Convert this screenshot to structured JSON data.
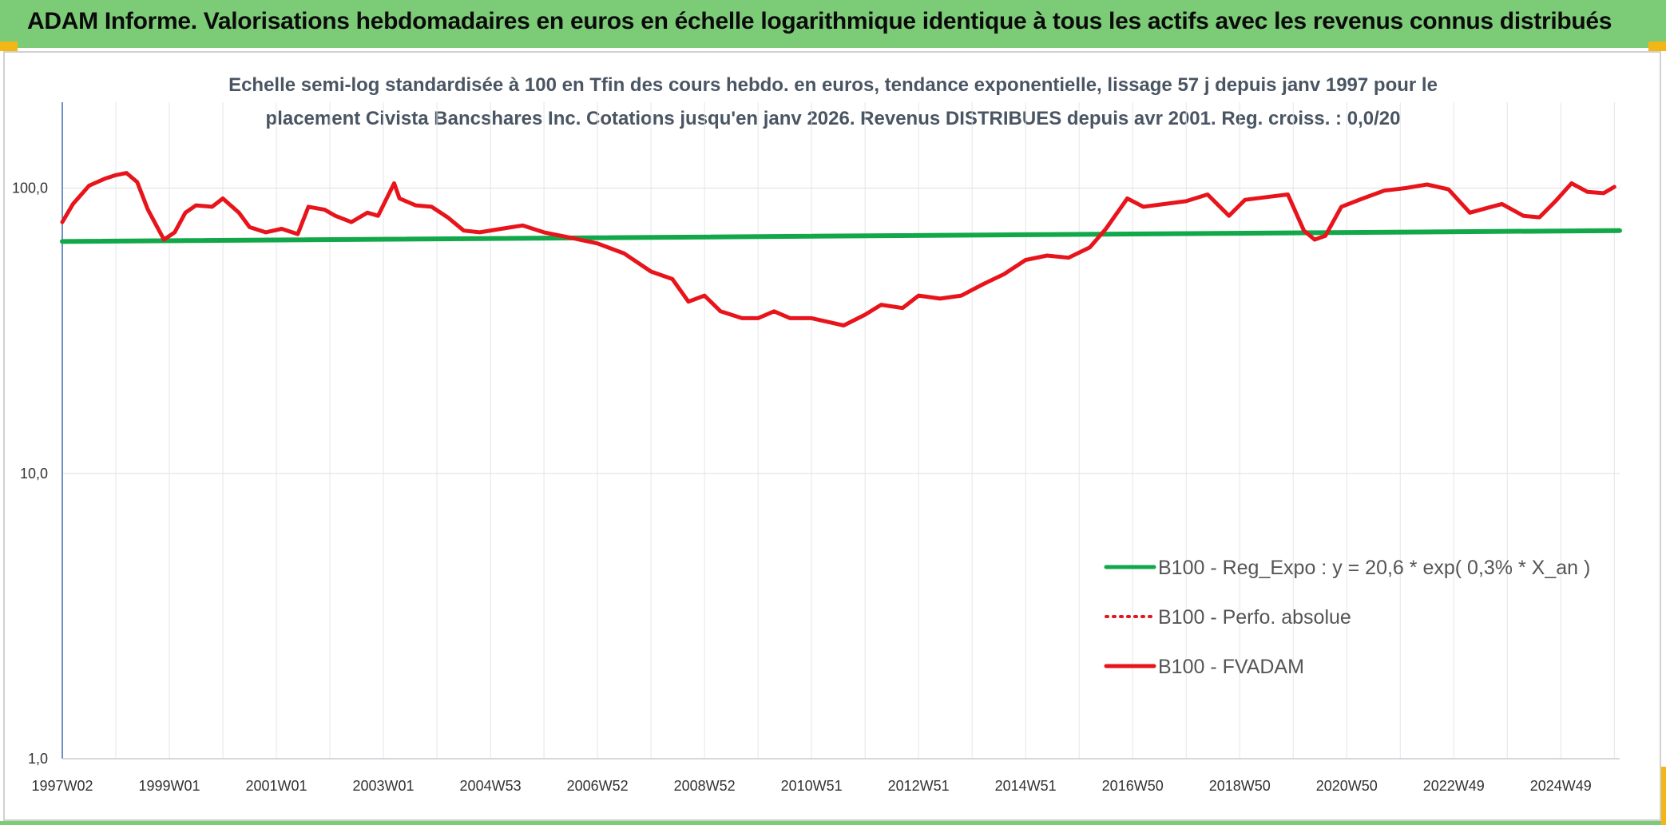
{
  "header": {
    "title": "ADAM Informe. Valorisations hebdomadaires en euros en échelle logarithmique identique à tous les actifs avec les revenus connus distribués"
  },
  "colors": {
    "banner": "#7ccb77",
    "accent": "#f2b617",
    "series_fvadam": "#e8141b",
    "series_reg": "#12a84a"
  },
  "chart_data": {
    "type": "line",
    "subtitle_lines": [
      "Echelle semi-log standardisée à 100 en Tfin des cours hebdo. en euros, tendance exponentielle, lissage 57 j depuis janv 1997 pour le",
      "placement Civista Bancshares Inc. Cotations jusqu'en janv 2026. Revenus DISTRIBUES depuis avr 2001. Reg. croiss. : 0,0/20"
    ],
    "y_scale": "log",
    "ylim": [
      1,
      200
    ],
    "y_ticks": [
      "1,0",
      "10,0",
      "100,0"
    ],
    "y_tick_values": [
      1,
      10,
      100
    ],
    "xlim": [
      1997.0,
      2026.1
    ],
    "x_ticks": [
      "1997W02",
      "1999W01",
      "2001W01",
      "2003W01",
      "2004W53",
      "2006W52",
      "2008W52",
      "2010W51",
      "2012W51",
      "2014W51",
      "2016W50",
      "2018W50",
      "2020W50",
      "2022W49",
      "2024W49"
    ],
    "x_tick_values": [
      1997.0,
      1999.0,
      2001.0,
      2003.0,
      2005.0,
      2007.0,
      2009.0,
      2011.0,
      2013.0,
      2015.0,
      2017.0,
      2019.0,
      2021.0,
      2023.0,
      2025.0
    ],
    "grid": true,
    "legend_position": "bottom-right",
    "legend": [
      {
        "label": "B100 - Reg_Expo : y = 20,6 * exp( 0,3% *  X_an )",
        "style": "solid",
        "color": "#12a84a"
      },
      {
        "label": "B100 - Perfo. absolue",
        "style": "dotted",
        "color": "#e8141b"
      },
      {
        "label": "B100 - FVADAM",
        "style": "solid",
        "color": "#e8141b"
      }
    ],
    "series": [
      {
        "name": "B100 - Reg_Expo",
        "color": "#12a84a",
        "x": [
          1997.0,
          2026.1
        ],
        "y": [
          65,
          71
        ]
      },
      {
        "name": "B100 - FVADAM",
        "color": "#e8141b",
        "x": [
          1997.0,
          1997.2,
          1997.5,
          1997.8,
          1998.0,
          1998.2,
          1998.4,
          1998.6,
          1998.9,
          1999.1,
          1999.3,
          1999.5,
          1999.8,
          2000.0,
          2000.3,
          2000.5,
          2000.8,
          2001.1,
          2001.4,
          2001.6,
          2001.9,
          2002.1,
          2002.4,
          2002.7,
          2002.9,
          2003.2,
          2003.3,
          2003.6,
          2003.9,
          2004.2,
          2004.5,
          2004.8,
          2005.2,
          2005.6,
          2006.0,
          2006.5,
          2007.0,
          2007.5,
          2008.0,
          2008.4,
          2008.7,
          2009.0,
          2009.3,
          2009.7,
          2010.0,
          2010.3,
          2010.6,
          2011.0,
          2011.3,
          2011.6,
          2012.0,
          2012.3,
          2012.7,
          2013.0,
          2013.4,
          2013.8,
          2014.2,
          2014.6,
          2015.0,
          2015.4,
          2015.8,
          2016.2,
          2016.5,
          2016.9,
          2017.2,
          2017.6,
          2018.0,
          2018.4,
          2018.8,
          2019.1,
          2019.5,
          2019.9,
          2020.2,
          2020.4,
          2020.6,
          2020.9,
          2021.3,
          2021.7,
          2022.1,
          2022.5,
          2022.9,
          2023.3,
          2023.6,
          2023.9,
          2024.3,
          2024.6,
          2024.9,
          2025.2,
          2025.5,
          2025.8,
          2026.0
        ],
        "y": [
          76,
          88,
          102,
          108,
          111,
          113,
          105,
          84,
          66,
          70,
          82,
          87,
          86,
          92,
          82,
          73,
          70,
          72,
          69,
          86,
          84,
          80,
          76,
          82,
          80,
          104,
          92,
          87,
          86,
          79,
          71,
          70,
          72,
          74,
          70,
          67,
          64,
          59,
          51,
          48,
          40,
          42,
          37,
          35,
          35,
          37,
          35,
          35,
          34,
          33,
          36,
          39,
          38,
          42,
          41,
          42,
          46,
          50,
          56,
          58,
          57,
          62,
          72,
          92,
          86,
          88,
          90,
          95,
          80,
          91,
          93,
          95,
          71,
          66,
          68,
          86,
          92,
          98,
          100,
          103,
          99,
          82,
          85,
          88,
          80,
          79,
          90,
          104,
          97,
          96,
          101
        ]
      }
    ]
  }
}
